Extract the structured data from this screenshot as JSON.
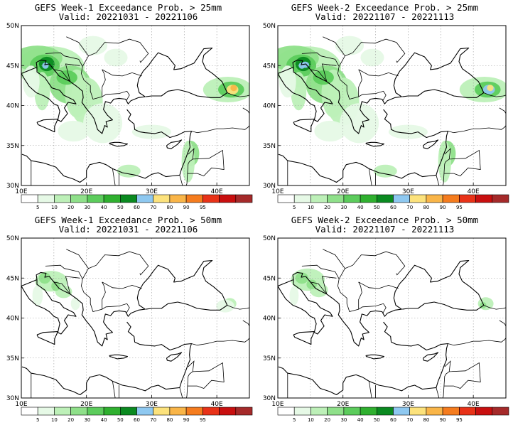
{
  "panels": [
    {
      "line1": "GEFS Week-1 Exceedance Prob. > 25mm",
      "line2": "Valid: 20221031 - 20221106",
      "threshold": 25
    },
    {
      "line1": "GEFS Week-2 Exceedance Prob. > 25mm",
      "line2": "Valid: 20221107 - 20221113",
      "threshold": 25
    },
    {
      "line1": "GEFS Week-1 Exceedance Prob. > 50mm",
      "line2": "Valid: 20221031 - 20221106",
      "threshold": 50
    },
    {
      "line1": "GEFS Week-2 Exceedance Prob. > 50mm",
      "line2": "Valid: 20221107 - 20221113",
      "threshold": 50
    }
  ],
  "lat_labels": [
    "50N",
    "45N",
    "40N",
    "35N",
    "30N"
  ],
  "lon_labels": [
    "10E",
    "20E",
    "30E",
    "40E"
  ],
  "colorbar": {
    "labels": [
      "5",
      "10",
      "20",
      "30",
      "40",
      "50",
      "60",
      "70",
      "80",
      "90",
      "95"
    ],
    "colors": [
      "#ffffff",
      "#e6f9e6",
      "#bdf0b8",
      "#8fe08a",
      "#5ccc5c",
      "#2fb02f",
      "#0a8a20",
      "#8ec8f0",
      "#fce27c",
      "#f9b548",
      "#f57c1e",
      "#e83218",
      "#c80f0f",
      "#a52a2a"
    ]
  },
  "map_extent": {
    "lon": [
      10,
      45
    ],
    "lat": [
      30,
      50
    ]
  }
}
